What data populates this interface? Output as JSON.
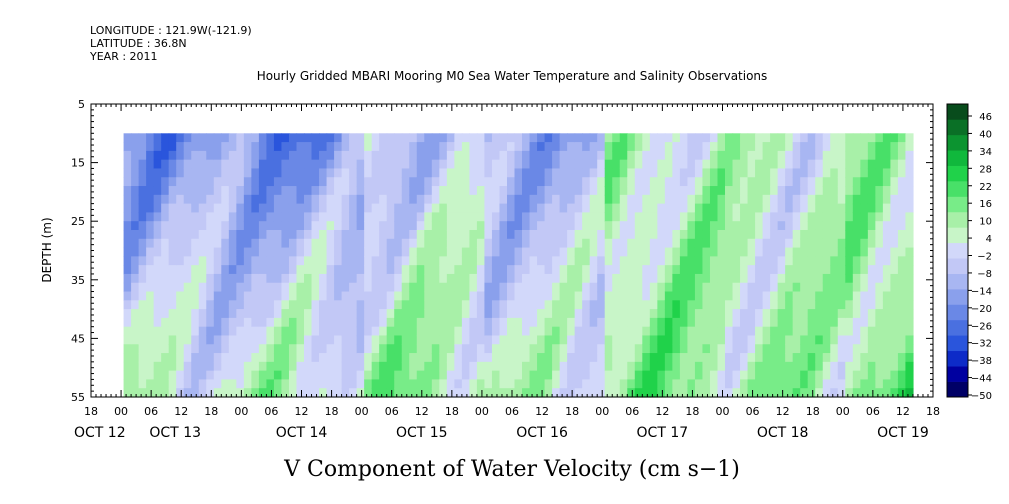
{
  "chart_data": {
    "type": "heatmap",
    "header": {
      "longitude": "LONGITUDE : 121.9W(-121.9)",
      "latitude": "LATITUDE : 36.8N",
      "year": "YEAR : 2011"
    },
    "title": "Hourly Gridded MBARI Mooring M0 Sea Water Temperature and Salinity Observations",
    "xlabel": "V Component of Water Velocity (cm s−1)",
    "ylabel": "DEPTH (m)",
    "y_ticks": [
      "5",
      "15",
      "25",
      "35",
      "45",
      "55"
    ],
    "ylim": [
      5,
      55
    ],
    "y_inverted": true,
    "hour_ticks": [
      "18",
      "00",
      "06",
      "12",
      "18",
      "00",
      "06",
      "12",
      "18",
      "00",
      "06",
      "12",
      "18",
      "00",
      "06",
      "12",
      "18",
      "00",
      "06",
      "12",
      "18",
      "00",
      "06",
      "12",
      "18",
      "00",
      "06",
      "12",
      "18"
    ],
    "date_labels": [
      "OCT 12",
      "OCT 13",
      "OCT 14",
      "OCT 15",
      "OCT 16",
      "OCT 17",
      "OCT 18",
      "OCT 19"
    ],
    "data_extent": {
      "start_hours_from_oct12_18": 6.5,
      "end_hours_from_oct12_18": 164,
      "shallowest_depth": 10,
      "deepest_depth": 55
    },
    "colorbar": {
      "labels": [
        "46",
        "40",
        "34",
        "28",
        "22",
        "16",
        "10",
        "4",
        "−2",
        "−8",
        "−14",
        "−20",
        "−26",
        "−32",
        "−38",
        "−44",
        "−50"
      ],
      "min": -50,
      "max": 50,
      "colors_low_to_high": [
        "#000066",
        "#0000a0",
        "#0d2bc8",
        "#2a55dc",
        "#4a70e0",
        "#6a88e6",
        "#8aa0ec",
        "#a8b6f2",
        "#c2c8f6",
        "#d2d8fa",
        "#c8f5c8",
        "#a8f0a8",
        "#78ec88",
        "#48e068",
        "#20d24a",
        "#10b83c",
        "#0c9430",
        "#0a7026",
        "#084c1c"
      ]
    },
    "day_means": [
      {
        "label": "OCT 13",
        "surface": -18,
        "deep": 5
      },
      {
        "label": "OCT 14",
        "surface": -20,
        "deep": 8
      },
      {
        "label": "OCT 15",
        "surface": -5,
        "deep": 12
      },
      {
        "label": "OCT 16",
        "surface": -12,
        "deep": 6
      },
      {
        "label": "OCT 17",
        "surface": 6,
        "deep": 14
      },
      {
        "label": "OCT 18",
        "surface": 4,
        "deep": 10
      },
      {
        "label": "OCT 19",
        "surface": 8,
        "deep": 16
      }
    ]
  }
}
